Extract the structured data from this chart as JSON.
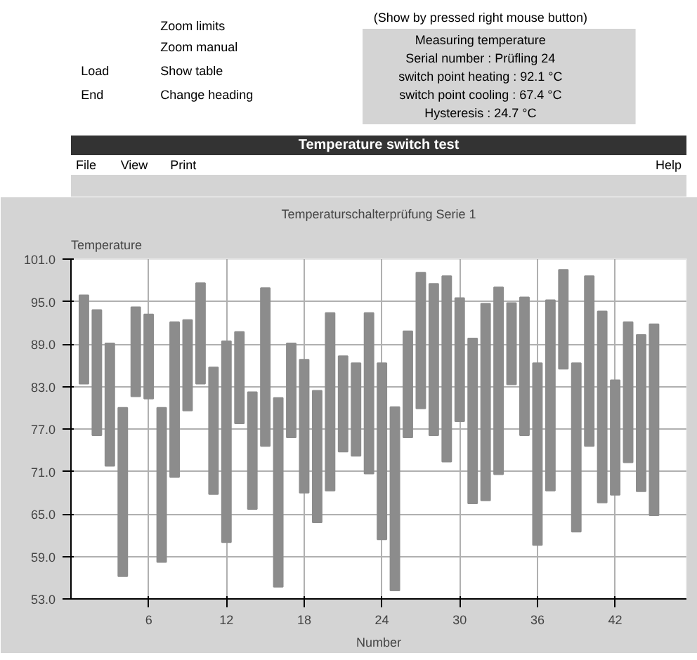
{
  "chart_data": {
    "type": "bar",
    "title": "Temperaturschalterprüfung Serie 1",
    "subtitle": "Temperature switch test",
    "ylabel": "Temperature",
    "xlabel": "Number",
    "x": [
      1,
      2,
      3,
      4,
      5,
      6,
      7,
      8,
      9,
      10,
      11,
      12,
      13,
      14,
      15,
      16,
      17,
      18,
      19,
      20,
      21,
      22,
      23,
      24,
      25,
      26,
      27,
      28,
      29,
      30,
      31,
      32,
      33,
      34,
      35,
      36,
      37,
      38,
      39,
      40,
      41,
      42,
      43,
      44,
      45
    ],
    "base": [
      83.4,
      76.1,
      71.8,
      56.2,
      81.6,
      81.3,
      58.2,
      70.2,
      79.6,
      83.4,
      67.8,
      61.0,
      77.8,
      65.7,
      74.6,
      54.7,
      75.8,
      68.0,
      63.8,
      68.3,
      73.8,
      73.2,
      70.7,
      61.4,
      54.2,
      75.8,
      79.9,
      76.1,
      72.4,
      78.1,
      66.5,
      66.9,
      70.6,
      83.3,
      76.1,
      60.6,
      68.3,
      85.5,
      62.5,
      74.6,
      66.6,
      67.7,
      72.3,
      68.2,
      64.8
    ],
    "values": [
      12.5,
      17.7,
      17.3,
      23.8,
      12.6,
      11.9,
      21.8,
      21.9,
      12.8,
      14.2,
      17.9,
      28.4,
      12.9,
      16.5,
      22.3,
      26.7,
      13.3,
      18.8,
      18.6,
      25.1,
      13.5,
      13.1,
      22.7,
      24.9,
      25.9,
      15.0,
      19.2,
      21.4,
      26.2,
      17.4,
      23.3,
      27.8,
      26.4,
      11.5,
      19.5,
      25.7,
      26.9,
      14.0,
      23.8,
      24.0,
      27.0,
      16.2,
      19.8,
      22.1,
      27.0
    ],
    "color": "#8c8c8c",
    "xlim": [
      0,
      47.5
    ],
    "xticks": [
      6,
      12,
      18,
      24,
      30,
      36,
      42
    ],
    "ylim": [
      53,
      101
    ],
    "yticks": [
      {
        "value": 53,
        "label": "53.0"
      },
      {
        "value": 59,
        "label": "59.0"
      },
      {
        "value": 65,
        "label": "65.0"
      },
      {
        "value": 71,
        "label": "71.0"
      },
      {
        "value": 77,
        "label": "77.0"
      },
      {
        "value": 83,
        "label": "83.0"
      },
      {
        "value": 89,
        "label": "89.0"
      },
      {
        "value": 95,
        "label": "95.0"
      },
      {
        "value": 101,
        "label": "101.0"
      }
    ],
    "grid": true,
    "annotations": [
      "(Show by pressed right mouse button)",
      "Measuring temperature",
      "Serial number : Prüfling 24",
      "switch point heating : 92.1 °C",
      "switch point cooling : 67.4 °C",
      "Hysteresis : 24.7 °C",
      "Zoom limits",
      "Zoom manual",
      "Load",
      "Show table",
      "End",
      "Change heading",
      "File",
      "View",
      "Print",
      "Help"
    ]
  }
}
